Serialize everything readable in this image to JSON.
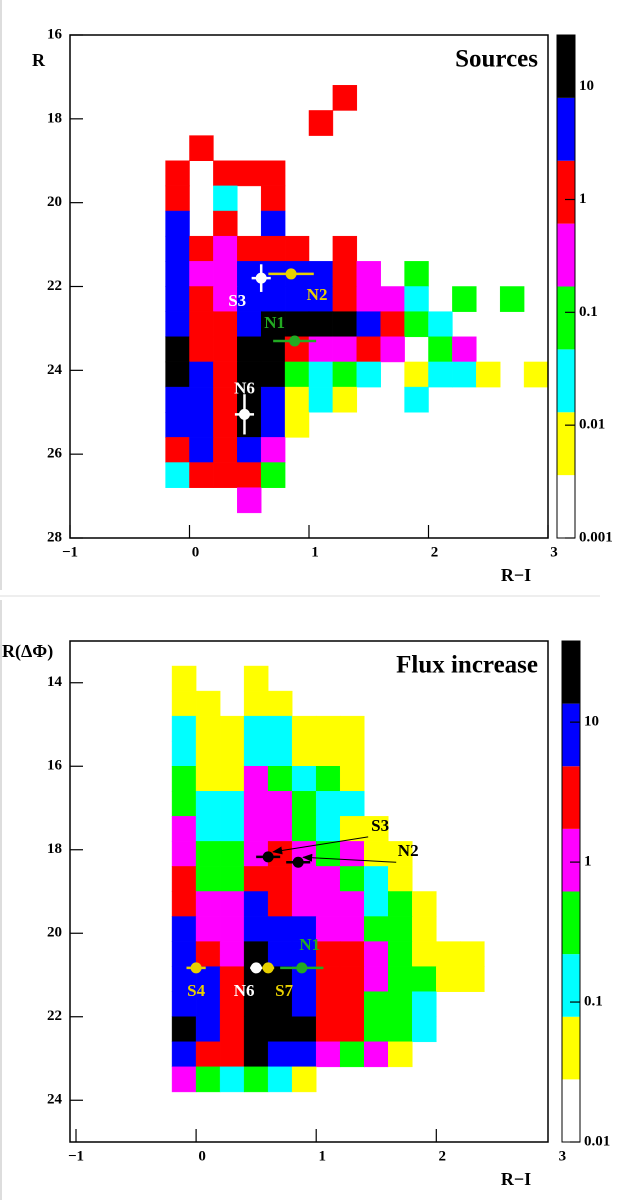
{
  "chart_data": [
    {
      "type": "heatmap",
      "title": "Sources",
      "xlabel": "R−I",
      "ylabel": "R",
      "xlim": [
        -1,
        3
      ],
      "ylim": [
        28,
        16
      ],
      "xticks": [
        {
          "value": -1,
          "label": "−1"
        },
        0,
        1,
        2,
        3
      ],
      "yticks": [
        16,
        18,
        20,
        22,
        24,
        26,
        28
      ],
      "log_z": true,
      "zlim": [
        0.001,
        28.7
      ],
      "zticks": [
        0.001,
        0.01,
        0.1,
        1,
        10
      ],
      "colors": [
        "#ffffff",
        "#ffff00",
        "#00ffff",
        "#00ff00",
        "#ff00ff",
        "#ff0000",
        "#0000ff",
        "#000000"
      ],
      "rows": [
        {
          "y": 17.5,
          "x": [
            1.3
          ],
          "values": [
            1.2
          ]
        },
        {
          "y": 18.1,
          "x": [
            1.1
          ],
          "values": [
            1.2
          ]
        },
        {
          "y": 18.7,
          "x": [
            0.1
          ],
          "values": [
            1.2
          ]
        },
        {
          "y": 19.3,
          "x": [
            -0.1,
            0.3,
            0.5,
            0.7
          ],
          "values": [
            1.2,
            1.2,
            1.2,
            1.2
          ]
        },
        {
          "y": 19.9,
          "x": [
            -0.1,
            0.3,
            0.7
          ],
          "values": [
            1.2,
            0.025,
            1.2
          ]
        },
        {
          "y": 20.5,
          "x": [
            -0.1,
            0.3,
            0.7
          ],
          "values": [
            4.2,
            1.2,
            4.2
          ]
        },
        {
          "y": 21.1,
          "x": [
            -0.1,
            0.1,
            0.3,
            0.5,
            0.7,
            0.9,
            1.3
          ],
          "values": [
            4.2,
            1.2,
            0.32,
            1.2,
            1.2,
            1.2,
            1.2
          ]
        },
        {
          "y": 21.7,
          "x": [
            -0.1,
            0.1,
            0.3,
            0.5,
            0.7,
            0.9,
            1.1,
            1.3,
            1.5,
            1.9
          ],
          "values": [
            4.2,
            0.32,
            0.32,
            4.2,
            4.2,
            4.2,
            4.2,
            1.2,
            0.32,
            0.089
          ]
        },
        {
          "y": 22.3,
          "x": [
            -0.1,
            0.1,
            0.3,
            0.5,
            0.7,
            0.9,
            1.1,
            1.3,
            1.5,
            1.7,
            1.9,
            2.3,
            2.7
          ],
          "values": [
            4.2,
            1.2,
            0.32,
            4.2,
            4.2,
            4.2,
            4.2,
            1.2,
            0.32,
            0.32,
            0.025,
            0.089,
            0.089
          ]
        },
        {
          "y": 22.9,
          "x": [
            -0.1,
            0.1,
            0.3,
            0.5,
            0.7,
            0.9,
            1.1,
            1.3,
            1.5,
            1.7,
            1.9,
            2.1
          ],
          "values": [
            4.2,
            1.2,
            1.2,
            4.2,
            15,
            15,
            15,
            15,
            4.2,
            1.2,
            0.089,
            0.025
          ]
        },
        {
          "y": 23.5,
          "x": [
            -0.1,
            0.1,
            0.3,
            0.5,
            0.7,
            0.9,
            1.1,
            1.3,
            1.5,
            1.7,
            2.1,
            2.3
          ],
          "values": [
            15,
            1.2,
            1.2,
            15,
            15,
            1.2,
            0.32,
            0.32,
            1.2,
            0.32,
            0.089,
            0.32
          ]
        },
        {
          "y": 24.1,
          "x": [
            -0.1,
            0.1,
            0.3,
            0.5,
            0.7,
            0.9,
            1.1,
            1.3,
            1.5,
            1.9,
            2.1,
            2.3,
            2.5,
            2.9
          ],
          "values": [
            15,
            4.2,
            1.2,
            15,
            15,
            0.089,
            0.025,
            0.089,
            0.025,
            0.0069,
            0.025,
            0.025,
            0.0069,
            0.0069
          ]
        },
        {
          "y": 24.7,
          "x": [
            -0.1,
            0.1,
            0.3,
            0.5,
            0.7,
            0.9,
            1.1,
            1.3,
            1.9
          ],
          "values": [
            4.2,
            4.2,
            1.2,
            15,
            4.2,
            0.0069,
            0.025,
            0.0069,
            0.025
          ]
        },
        {
          "y": 25.3,
          "x": [
            -0.1,
            0.1,
            0.3,
            0.5,
            0.7,
            0.9
          ],
          "values": [
            4.2,
            4.2,
            1.2,
            15,
            4.2,
            0.0069
          ]
        },
        {
          "y": 25.9,
          "x": [
            -0.1,
            0.1,
            0.3,
            0.5,
            0.7
          ],
          "values": [
            1.2,
            4.2,
            1.2,
            4.2,
            0.32
          ]
        },
        {
          "y": 26.5,
          "x": [
            -0.1,
            0.1,
            0.3,
            0.5,
            0.7
          ],
          "values": [
            0.025,
            1.2,
            1.2,
            1.2,
            0.089
          ]
        },
        {
          "y": 27.1,
          "x": [
            0.5
          ],
          "values": [
            0.32
          ]
        }
      ],
      "points": [
        {
          "name": "S3",
          "color": "#ffffff",
          "x": 0.6,
          "y": 21.8,
          "xerr": 0.08,
          "yerr": 0.33
        },
        {
          "name": "N2",
          "color": "#e8d000",
          "x": 0.85,
          "y": 21.7,
          "xerr": 0.19
        },
        {
          "name": "N1",
          "color": "#22aa22",
          "x": 0.88,
          "y": 23.3,
          "xerr": 0.18
        },
        {
          "name": "N6",
          "color": "#ffffff",
          "x": 0.46,
          "y": 25.05,
          "xerr": 0.08,
          "yerr": 0.48
        }
      ]
    },
    {
      "type": "heatmap",
      "title": "Flux increase",
      "xlabel": "R−I",
      "ylabel": "R(ΔΦ)",
      "xlim": [
        -1.05,
        2.93
      ],
      "ylim": [
        25,
        13
      ],
      "xticks": [
        {
          "value": -1,
          "label": "−1"
        },
        0,
        1,
        2,
        3
      ],
      "yticks": [
        14,
        16,
        18,
        20,
        22,
        24
      ],
      "log_z": true,
      "zlim": [
        0.01,
        38
      ],
      "zticks": [
        0.01,
        0.1,
        1,
        10
      ],
      "colors": [
        "#ffffff",
        "#ffff00",
        "#00ffff",
        "#00ff00",
        "#ff00ff",
        "#ff0000",
        "#0000ff",
        "#000000"
      ],
      "rows": [
        {
          "y": 13.9,
          "x": [
            -0.1,
            0.5
          ],
          "values": [
            0.047,
            0.047
          ]
        },
        {
          "y": 14.5,
          "x": [
            -0.1,
            0.1,
            0.5,
            0.7
          ],
          "values": [
            0.047,
            0.047,
            0.047,
            0.047
          ]
        },
        {
          "y": 15.1,
          "x": [
            -0.1,
            0.1,
            0.3,
            0.5,
            0.7,
            0.9,
            1.1,
            1.3
          ],
          "values": [
            0.13,
            0.047,
            0.047,
            0.13,
            0.13,
            0.047,
            0.047,
            0.047
          ]
        },
        {
          "y": 15.7,
          "x": [
            -0.1,
            0.1,
            0.3,
            0.5,
            0.7,
            0.9,
            1.1,
            1.3
          ],
          "values": [
            0.13,
            0.047,
            0.047,
            0.13,
            0.13,
            0.047,
            0.047,
            0.047
          ]
        },
        {
          "y": 16.3,
          "x": [
            -0.1,
            0.1,
            0.3,
            0.5,
            0.7,
            0.9,
            1.1,
            1.3
          ],
          "values": [
            0.37,
            0.047,
            0.047,
            1.05,
            0.37,
            0.13,
            0.37,
            0.047
          ]
        },
        {
          "y": 16.9,
          "x": [
            -0.1,
            0.1,
            0.3,
            0.5,
            0.7,
            0.9,
            1.1,
            1.3
          ],
          "values": [
            0.37,
            0.13,
            0.13,
            1.05,
            1.05,
            0.37,
            0.13,
            0.13
          ]
        },
        {
          "y": 17.5,
          "x": [
            -0.1,
            0.1,
            0.3,
            0.5,
            0.7,
            0.9,
            1.1,
            1.3,
            1.5
          ],
          "values": [
            1.05,
            0.13,
            0.13,
            1.05,
            1.05,
            0.37,
            0.13,
            0.047,
            0.047
          ]
        },
        {
          "y": 18.1,
          "x": [
            -0.1,
            0.1,
            0.3,
            0.5,
            0.7,
            0.9,
            1.1,
            1.3,
            1.5,
            1.7
          ],
          "values": [
            1.05,
            0.37,
            0.37,
            1.05,
            2.9,
            1.05,
            0.37,
            1.05,
            0.047,
            0.047
          ]
        },
        {
          "y": 18.7,
          "x": [
            -0.1,
            0.1,
            0.3,
            0.5,
            0.7,
            0.9,
            1.1,
            1.3,
            1.5,
            1.7
          ],
          "values": [
            2.9,
            0.37,
            0.37,
            2.9,
            2.9,
            1.05,
            1.05,
            0.37,
            0.13,
            0.047
          ]
        },
        {
          "y": 19.3,
          "x": [
            -0.1,
            0.1,
            0.3,
            0.5,
            0.7,
            0.9,
            1.1,
            1.3,
            1.5,
            1.7,
            1.9
          ],
          "values": [
            2.9,
            1.05,
            1.05,
            8.3,
            2.9,
            1.05,
            1.05,
            1.05,
            0.13,
            0.37,
            0.047
          ]
        },
        {
          "y": 19.9,
          "x": [
            -0.1,
            0.1,
            0.3,
            0.5,
            0.7,
            0.9,
            1.1,
            1.3,
            1.5,
            1.7,
            1.9
          ],
          "values": [
            8.3,
            1.05,
            1.05,
            8.3,
            8.3,
            8.3,
            1.05,
            1.05,
            0.37,
            0.37,
            0.047
          ]
        },
        {
          "y": 20.5,
          "x": [
            -0.1,
            0.1,
            0.3,
            0.5,
            0.7,
            0.9,
            1.1,
            1.3,
            1.5,
            1.7,
            1.9,
            2.1,
            2.3
          ],
          "values": [
            8.3,
            2.9,
            1.05,
            23,
            8.3,
            8.3,
            2.9,
            2.9,
            1.05,
            0.37,
            0.047,
            0.047,
            0.047
          ]
        },
        {
          "y": 21.1,
          "x": [
            -0.1,
            0.1,
            0.3,
            0.5,
            0.7,
            0.9,
            1.1,
            1.3,
            1.5,
            1.7,
            1.9,
            2.1,
            2.3
          ],
          "values": [
            8.3,
            8.3,
            2.9,
            23,
            23,
            8.3,
            2.9,
            2.9,
            1.05,
            0.37,
            0.37,
            0.047,
            0.047
          ]
        },
        {
          "y": 21.7,
          "x": [
            -0.1,
            0.1,
            0.3,
            0.5,
            0.7,
            0.9,
            1.1,
            1.3,
            1.5,
            1.7,
            1.9
          ],
          "values": [
            8.3,
            8.3,
            2.9,
            23,
            23,
            8.3,
            2.9,
            2.9,
            0.37,
            0.37,
            0.13
          ]
        },
        {
          "y": 22.3,
          "x": [
            -0.1,
            0.1,
            0.3,
            0.5,
            0.7,
            0.9,
            1.1,
            1.3,
            1.5,
            1.7,
            1.9
          ],
          "values": [
            23,
            8.3,
            2.9,
            23,
            23,
            23,
            2.9,
            2.9,
            0.37,
            0.37,
            0.13
          ]
        },
        {
          "y": 22.9,
          "x": [
            -0.1,
            0.1,
            0.3,
            0.5,
            0.7,
            0.9,
            1.1,
            1.3,
            1.5,
            1.7
          ],
          "values": [
            8.3,
            2.9,
            2.9,
            23,
            8.3,
            8.3,
            1.05,
            0.37,
            1.05,
            0.047
          ]
        },
        {
          "y": 23.5,
          "x": [
            -0.1,
            0.1,
            0.3,
            0.5,
            0.7,
            0.9
          ],
          "values": [
            1.05,
            0.37,
            0.13,
            0.37,
            0.13,
            0.047
          ]
        }
      ],
      "points": [
        {
          "name": "S3",
          "color": "#000000",
          "x": 0.6,
          "y": 18.17,
          "xerr": 0.1
        },
        {
          "name": "N2",
          "color": "#000000",
          "x": 0.85,
          "y": 18.3,
          "xerr": 0.1
        },
        {
          "name": "S4",
          "color": "#e8d000",
          "x": 0.0,
          "y": 20.83,
          "xerr": 0.08
        },
        {
          "name": "N6",
          "color": "#ffffff",
          "x": 0.5,
          "y": 20.83,
          "xerr": 0.05
        },
        {
          "name": "S7",
          "color": "#e8d000",
          "x": 0.6,
          "y": 20.83,
          "xerr": 0.05
        },
        {
          "name": "N1",
          "color": "#22aa22",
          "x": 0.88,
          "y": 20.83,
          "xerr": 0.18
        }
      ]
    }
  ]
}
